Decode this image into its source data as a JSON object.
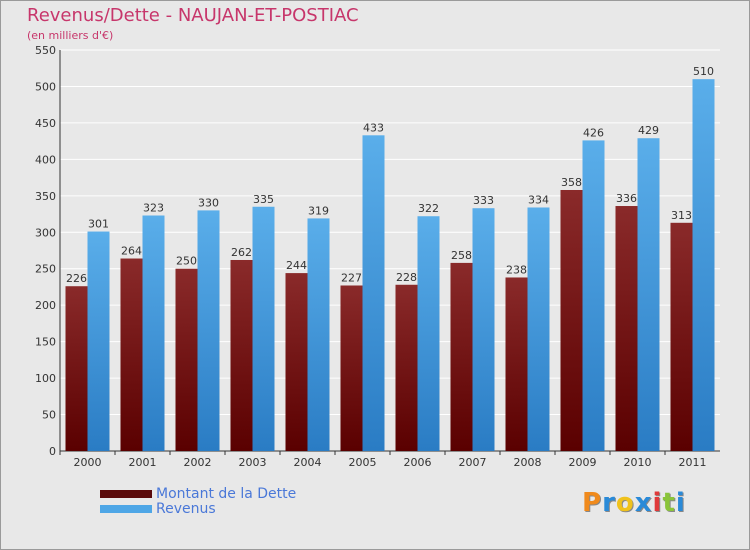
{
  "chart_data": {
    "type": "bar",
    "title": "Revenus/Dette - NAUJAN-ET-POSTIAC",
    "subtitle": "(en milliers d'€)",
    "categories": [
      "2000",
      "2001",
      "2002",
      "2003",
      "2004",
      "2005",
      "2006",
      "2007",
      "2008",
      "2009",
      "2010",
      "2011"
    ],
    "series": [
      {
        "name": "Montant de la Dette",
        "values": [
          226,
          264,
          250,
          262,
          244,
          227,
          228,
          258,
          238,
          358,
          336,
          313
        ],
        "color": "#7a1414"
      },
      {
        "name": "Revenus",
        "values": [
          301,
          323,
          330,
          335,
          319,
          433,
          322,
          333,
          334,
          426,
          429,
          510
        ],
        "color": "#4ea6e6"
      }
    ],
    "ylim": [
      0,
      550
    ],
    "yticks": [
      0,
      50,
      100,
      150,
      200,
      250,
      300,
      350,
      400,
      450,
      500,
      550
    ],
    "grid": true
  },
  "logo": {
    "letters": [
      "P",
      "r",
      "o",
      "x",
      "i",
      "t",
      "i"
    ],
    "colors": [
      "#f08a1c",
      "#2a8ad8",
      "#f0c21c",
      "#2a8ad8",
      "#e03a3a",
      "#8ac43a",
      "#2a8ad8"
    ]
  }
}
